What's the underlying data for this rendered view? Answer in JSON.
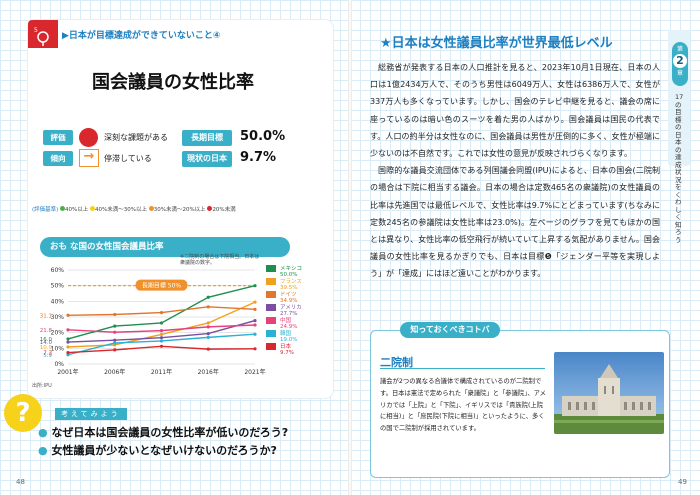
{
  "left_page": {
    "header_tag": "▶日本が目標達成ができていないこと④",
    "title": "国会議員の女性比率",
    "rating": {
      "label": "評価",
      "text": "深刻な課題がある",
      "color": "#d9272e"
    },
    "trend": {
      "label": "傾向",
      "text": "停滞している",
      "arrow": "→"
    },
    "goal": {
      "label": "長期目標",
      "value": "50.0%"
    },
    "current": {
      "label": "現状の日本",
      "value": "9.7%"
    },
    "legend": {
      "label": "(評価基準)",
      "items": [
        "40%以上",
        "40%未満〜30%以上",
        "30%未満〜20%以上",
        "20%未満"
      ],
      "colors": [
        "#4cae4c",
        "#f6d21a",
        "#f0912c",
        "#d9272e"
      ]
    },
    "chart_note": "※二院制の場合は下院相当。日本は衆議院の数字。",
    "source": "出所:IPU",
    "think_label": "考えてみよう",
    "questions": [
      "なぜ日本は国会議員の女性比率が低いのだろう?",
      "女性議員が少ないとなぜいけないのだろうか?"
    ],
    "page_number": "48"
  },
  "chart_data": {
    "type": "line",
    "title": "おも な国の女性国会議員比率",
    "x": [
      "2001年",
      "2006年",
      "2011年",
      "2016年",
      "2021年"
    ],
    "ylim": [
      0,
      60
    ],
    "yticks": [
      "0%",
      "10%",
      "20%",
      "30%",
      "40%",
      "50%",
      "60%"
    ],
    "goal_line": {
      "label": "長期目標 50%",
      "value": 50
    },
    "series": [
      {
        "name": "メキシコ",
        "end_label": "50.0%",
        "color": "#1e8f4e",
        "values": [
          16.0,
          24.2,
          26.2,
          42.6,
          50.0
        ]
      },
      {
        "name": "フランス",
        "end_label": "39.5%",
        "color": "#f0a01e",
        "values": [
          10.9,
          12.2,
          18.9,
          26.2,
          39.5
        ]
      },
      {
        "name": "ドイツ",
        "end_label": "34.9%",
        "color": "#e2762a",
        "values": [
          31.1,
          31.6,
          32.8,
          36.5,
          34.9
        ]
      },
      {
        "name": "アメリカ",
        "end_label": "27.7%",
        "color": "#7b4fa0",
        "values": [
          14.0,
          15.2,
          16.8,
          19.4,
          27.7
        ]
      },
      {
        "name": "中国",
        "end_label": "24.9%",
        "color": "#e7417a",
        "values": [
          21.8,
          20.3,
          21.3,
          23.7,
          24.9
        ]
      },
      {
        "name": "韓国",
        "end_label": "19.0%",
        "color": "#2ab1d4",
        "values": [
          5.9,
          13.4,
          14.7,
          17.0,
          19.0
        ]
      },
      {
        "name": "日本",
        "end_label": "9.7%",
        "color": "#d9272e",
        "values": [
          7.3,
          9.0,
          11.3,
          9.5,
          9.7
        ]
      }
    ],
    "start_labels": [
      "31.1",
      "21.8",
      "16.0",
      "14.0",
      "10.9",
      "7.3",
      "5.9"
    ]
  },
  "right_page": {
    "heading": "★日本は女性議員比率が世界最低レベル",
    "paragraphs": [
      "総務省が発表する日本の人口推計を見ると、2023年10月1日現在、日本の人口は1億2434万人で、そのうち男性は6049万人、女性は6386万人で、女性が337万人も多くなっています。しかし、国会のテレビ中継を見ると、議会の席に座っているのは暗い色のスーツを着た男の人ばかり。国会議員は国民の代表です。人口の約半分は女性なのに、国会議員は男性が圧倒的に多く、女性が極端に少ないのは不自然です。これでは女性の意見が反映されづらくなります。",
      "国際的な議員交流団体である列国議会同盟(IPU)によると、日本の国会(二院制の場合は下院に相当する議会。日本の場合は定数465名の衆議院)の女性議員の比率は先進国では最低レベルで、女性比率は9.7%にとどまっています(ちなみに定数245名の参議院は女性比率は23.0%)。左ページのグラフを見てもほかの国とは異なり、女性比率の低空飛行が続いていて上昇する気配がありません。国会議員の女性比率を見るかぎりでも、日本は目標❺「ジェンダー平等を実現しよう」が「達成」にはほど遠いことがわかります。"
    ],
    "side": {
      "chapter_label": "第",
      "chapter_num": "2",
      "chapter_suffix": "章",
      "text": "17の目標の日本の達成状況をくわしく知ろう"
    },
    "keyword_box": {
      "title": "知っておくべきコトバ",
      "word": "二院制",
      "text": "議会が2つの異なる合議体で構成されているのが二院制です。日本は憲法で定められた「衆議院」と「参議院」、アメリカでは「上院」と「下院」、イギリスでは「貴族院(上院に相当)」と「庶民院(下院に相当)」といったように、多くの国で二院制が採用されています。"
    },
    "page_number": "49"
  }
}
